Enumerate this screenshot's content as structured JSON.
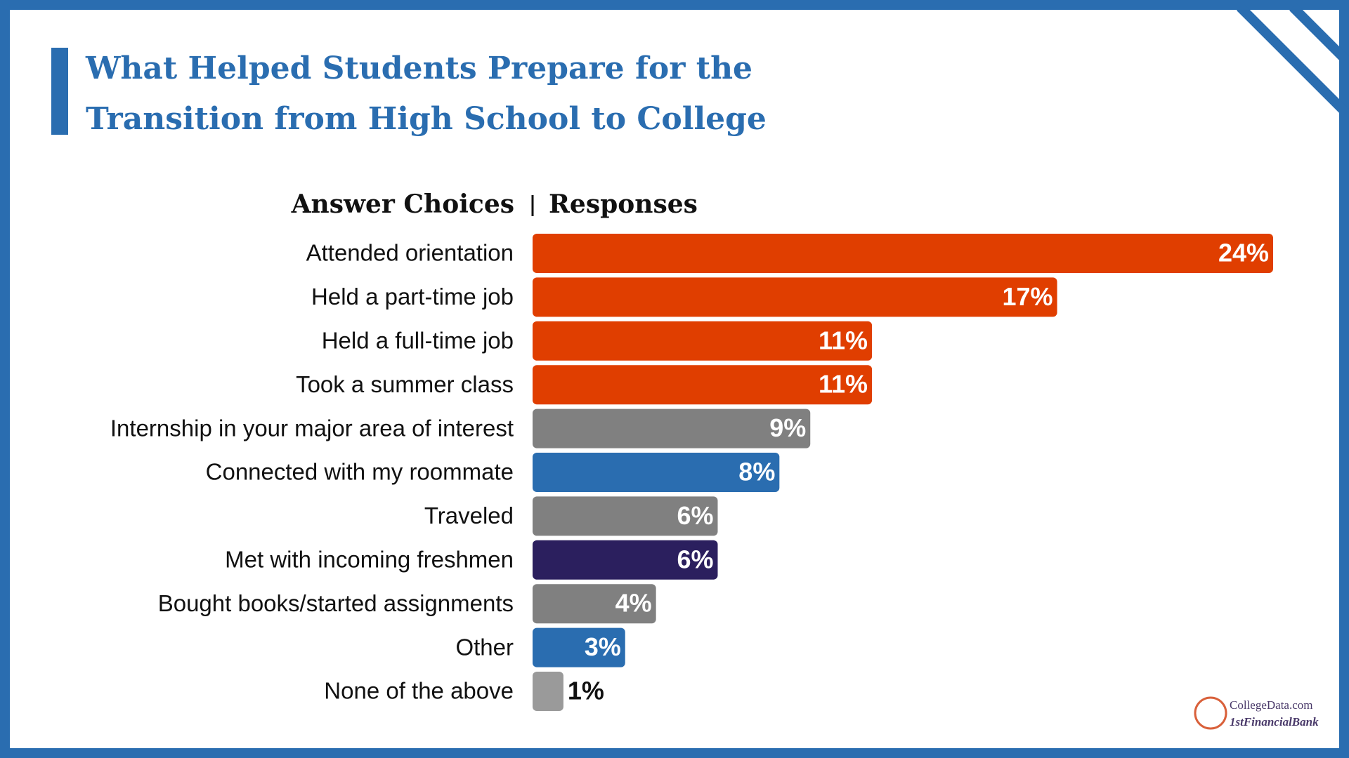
{
  "chart_data": {
    "type": "hbar",
    "title": "What Helped Students Prepare for the Transition from High School to College",
    "category_header": "Answer Choices",
    "value_header": "Responses",
    "categories": [
      "Attended orientation",
      "Held a part-time job",
      "Held a full-time job",
      "Took a summer class",
      "Internship in your major area of interest",
      "Connected with my roommate",
      "Traveled",
      "Met with incoming freshmen",
      "Bought books/started assignments",
      "Other",
      "None of the above"
    ],
    "values": [
      24,
      17,
      11,
      11,
      9,
      8,
      6,
      6,
      4,
      3,
      1
    ],
    "value_labels": [
      "24%",
      "17%",
      "11%",
      "11%",
      "9%",
      "8%",
      "6%",
      "6%",
      "4%",
      "3%",
      "1%"
    ],
    "colors": [
      "#e03e00",
      "#e03e00",
      "#e03e00",
      "#e03e00",
      "#808080",
      "#2a6db0",
      "#808080",
      "#2b1f5e",
      "#808080",
      "#2a6db0",
      "#9a9a9a"
    ]
  },
  "logo": {
    "name": "CollegeData.com",
    "partner": "1stFinancialBank"
  }
}
